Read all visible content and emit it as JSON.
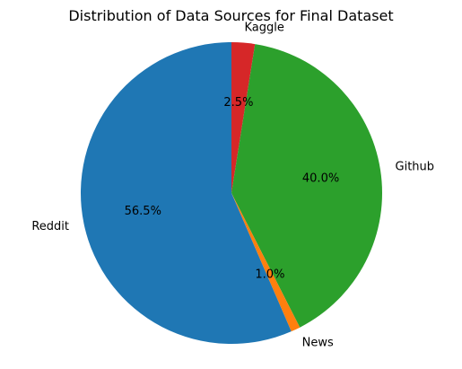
{
  "chart_data": {
    "type": "pie",
    "title": "Distribution of Data Sources for Final Dataset",
    "slices": [
      {
        "label": "Kaggle",
        "value": 2.5,
        "pct_label": "2.5%",
        "color": "#d62728"
      },
      {
        "label": "Github",
        "value": 40.0,
        "pct_label": "40.0%",
        "color": "#2ca02c"
      },
      {
        "label": "News",
        "value": 1.0,
        "pct_label": "1.0%",
        "color": "#ff7f0e"
      },
      {
        "label": "Reddit",
        "value": 56.5,
        "pct_label": "56.5%",
        "color": "#1f77b4"
      }
    ],
    "start_angle_deg": 90,
    "direction": "clockwise-from-top"
  }
}
